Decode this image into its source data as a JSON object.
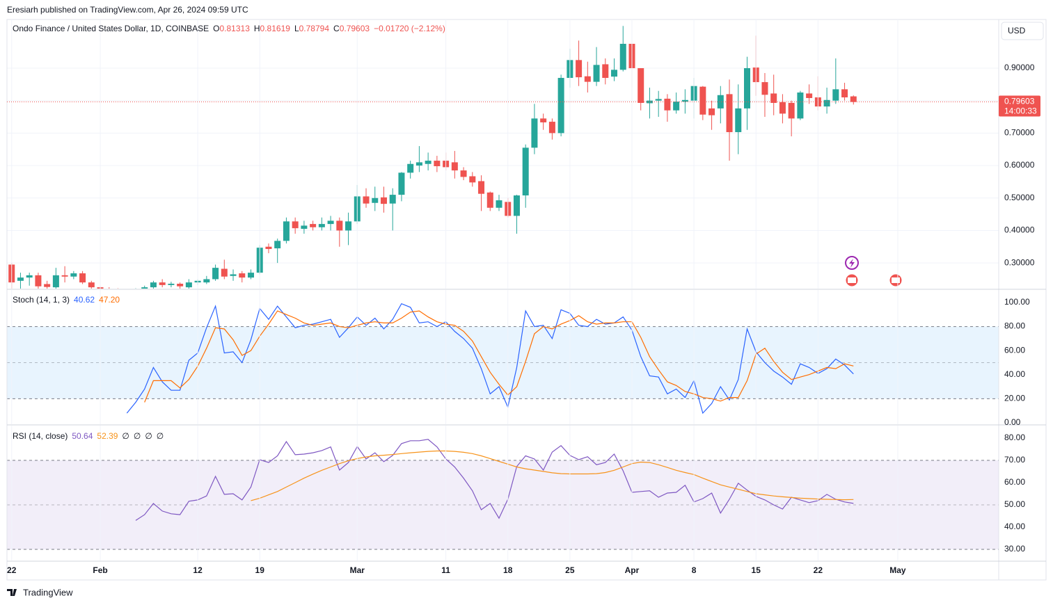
{
  "header": "Eresiarh published on TradingView.com, Apr 26, 2024 09:59 UTC",
  "footer": "TradingView",
  "chart_data": [
    {
      "type": "candlestick",
      "title": "Ondo Finance / United States Dollar, 1D, COINBASE",
      "ohlc_legend": [
        {
          "label": "O",
          "value": "0.81313"
        },
        {
          "label": "H",
          "value": "0.81619"
        },
        {
          "label": "L",
          "value": "0.78794"
        },
        {
          "label": "C",
          "value": "0.79603"
        }
      ],
      "change": "−0.01720 (−2.12%)",
      "currency": "USD",
      "last_price_label": "0.79603",
      "countdown": "14:00:33",
      "up_color": "#26a69a",
      "down_color": "#ef5350",
      "x": [
        "2024-01-22",
        "2024-01-23",
        "2024-01-24",
        "2024-01-25",
        "2024-01-26",
        "2024-01-27",
        "2024-01-28",
        "2024-01-29",
        "2024-01-30",
        "2024-01-31",
        "2024-02-01",
        "2024-02-02",
        "2024-02-03",
        "2024-02-04",
        "2024-02-05",
        "2024-02-06",
        "2024-02-07",
        "2024-02-08",
        "2024-02-09",
        "2024-02-10",
        "2024-02-11",
        "2024-02-12",
        "2024-02-13",
        "2024-02-14",
        "2024-02-15",
        "2024-02-16",
        "2024-02-17",
        "2024-02-18",
        "2024-02-19",
        "2024-02-20",
        "2024-02-21",
        "2024-02-22",
        "2024-02-23",
        "2024-02-24",
        "2024-02-25",
        "2024-02-26",
        "2024-02-27",
        "2024-02-28",
        "2024-02-29",
        "2024-03-01",
        "2024-03-02",
        "2024-03-03",
        "2024-03-04",
        "2024-03-05",
        "2024-03-06",
        "2024-03-07",
        "2024-03-08",
        "2024-03-09",
        "2024-03-10",
        "2024-03-11",
        "2024-03-12",
        "2024-03-13",
        "2024-03-14",
        "2024-03-15",
        "2024-03-16",
        "2024-03-17",
        "2024-03-18",
        "2024-03-19",
        "2024-03-20",
        "2024-03-21",
        "2024-03-22",
        "2024-03-23",
        "2024-03-24",
        "2024-03-25",
        "2024-03-26",
        "2024-03-27",
        "2024-03-28",
        "2024-03-29",
        "2024-03-30",
        "2024-03-31",
        "2024-04-01",
        "2024-04-02",
        "2024-04-03",
        "2024-04-04",
        "2024-04-05",
        "2024-04-06",
        "2024-04-07",
        "2024-04-08",
        "2024-04-09",
        "2024-04-10",
        "2024-04-11",
        "2024-04-12",
        "2024-04-13",
        "2024-04-14",
        "2024-04-15",
        "2024-04-16",
        "2024-04-17",
        "2024-04-18",
        "2024-04-19",
        "2024-04-20",
        "2024-04-21",
        "2024-04-22",
        "2024-04-23",
        "2024-04-24",
        "2024-04-25",
        "2024-04-26"
      ],
      "xlim": [
        "2024-01-21",
        "2024-05-12"
      ],
      "xticks": [
        {
          "value": "2024-01-22",
          "label": "22"
        },
        {
          "value": "2024-02-01",
          "label": "Feb"
        },
        {
          "value": "2024-02-12",
          "label": "12"
        },
        {
          "value": "2024-02-19",
          "label": "19"
        },
        {
          "value": "2024-03-01",
          "label": "Mar"
        },
        {
          "value": "2024-03-11",
          "label": "11"
        },
        {
          "value": "2024-03-18",
          "label": "18"
        },
        {
          "value": "2024-03-25",
          "label": "25"
        },
        {
          "value": "2024-04-01",
          "label": "Apr"
        },
        {
          "value": "2024-04-08",
          "label": "8"
        },
        {
          "value": "2024-04-15",
          "label": "15"
        },
        {
          "value": "2024-04-22",
          "label": "22"
        },
        {
          "value": "2024-05-01",
          "label": "May"
        }
      ],
      "open": [
        0.295,
        0.245,
        0.255,
        0.262,
        0.235,
        0.225,
        0.262,
        0.258,
        0.268,
        0.24,
        0.225,
        0.218,
        0.215,
        0.212,
        0.214,
        0.218,
        0.225,
        0.24,
        0.232,
        0.236,
        0.225,
        0.24,
        0.24,
        0.25,
        0.282,
        0.26,
        0.268,
        0.255,
        0.27,
        0.35,
        0.345,
        0.368,
        0.428,
        0.405,
        0.42,
        0.41,
        0.42,
        0.43,
        0.4,
        0.428,
        0.505,
        0.485,
        0.502,
        0.483,
        0.51,
        0.578,
        0.6,
        0.605,
        0.615,
        0.615,
        0.61,
        0.585,
        0.567,
        0.552,
        0.517,
        0.47,
        0.488,
        0.445,
        0.508,
        0.655,
        0.745,
        0.735,
        0.7,
        0.87,
        0.925,
        0.875,
        0.858,
        0.912,
        0.874,
        0.895,
        0.975,
        0.9,
        0.792,
        0.8,
        0.806,
        0.77,
        0.797,
        0.8,
        0.843,
        0.776,
        0.776,
        0.82,
        0.703,
        0.776,
        0.902,
        0.857,
        0.822,
        0.795,
        0.793,
        0.745,
        0.822,
        0.81,
        0.782,
        0.8,
        0.835,
        0.81313
      ],
      "high": [
        0.3,
        0.27,
        0.27,
        0.27,
        0.245,
        0.285,
        0.29,
        0.275,
        0.275,
        0.245,
        0.23,
        0.225,
        0.222,
        0.22,
        0.222,
        0.23,
        0.245,
        0.25,
        0.242,
        0.24,
        0.25,
        0.25,
        0.26,
        0.295,
        0.31,
        0.28,
        0.275,
        0.28,
        0.355,
        0.36,
        0.375,
        0.44,
        0.44,
        0.43,
        0.43,
        0.44,
        0.445,
        0.44,
        0.455,
        0.54,
        0.53,
        0.535,
        0.535,
        0.53,
        0.58,
        0.615,
        0.66,
        0.64,
        0.63,
        0.64,
        0.645,
        0.595,
        0.58,
        0.57,
        0.52,
        0.51,
        0.5,
        0.51,
        0.665,
        0.79,
        0.76,
        0.745,
        0.88,
        0.96,
        0.985,
        0.92,
        0.965,
        0.93,
        0.93,
        1.03,
        0.98,
        0.9,
        0.84,
        0.83,
        0.82,
        0.825,
        0.835,
        0.87,
        0.845,
        0.8,
        0.845,
        0.865,
        0.85,
        0.935,
        1.0,
        0.885,
        0.88,
        0.82,
        0.8,
        0.83,
        0.85,
        0.875,
        0.84,
        0.93,
        0.855,
        0.81619
      ],
      "low": [
        0.22,
        0.22,
        0.23,
        0.22,
        0.215,
        0.22,
        0.24,
        0.25,
        0.235,
        0.215,
        0.21,
        0.205,
        0.205,
        0.205,
        0.208,
        0.21,
        0.22,
        0.225,
        0.225,
        0.22,
        0.22,
        0.232,
        0.235,
        0.245,
        0.25,
        0.245,
        0.24,
        0.25,
        0.265,
        0.33,
        0.3,
        0.36,
        0.39,
        0.39,
        0.4,
        0.4,
        0.4,
        0.35,
        0.355,
        0.42,
        0.47,
        0.46,
        0.455,
        0.4,
        0.49,
        0.56,
        0.58,
        0.585,
        0.58,
        0.585,
        0.56,
        0.555,
        0.535,
        0.46,
        0.46,
        0.46,
        0.44,
        0.39,
        0.47,
        0.635,
        0.71,
        0.68,
        0.69,
        0.84,
        0.845,
        0.825,
        0.845,
        0.85,
        0.86,
        0.89,
        0.84,
        0.77,
        0.745,
        0.75,
        0.735,
        0.76,
        0.76,
        0.745,
        0.74,
        0.71,
        0.73,
        0.615,
        0.635,
        0.71,
        0.815,
        0.75,
        0.755,
        0.73,
        0.69,
        0.74,
        0.79,
        0.77,
        0.76,
        0.79,
        0.8,
        0.78794
      ],
      "close": [
        0.24,
        0.255,
        0.262,
        0.228,
        0.226,
        0.262,
        0.258,
        0.268,
        0.24,
        0.225,
        0.218,
        0.215,
        0.212,
        0.214,
        0.218,
        0.225,
        0.24,
        0.232,
        0.236,
        0.228,
        0.24,
        0.245,
        0.25,
        0.285,
        0.258,
        0.265,
        0.255,
        0.27,
        0.347,
        0.343,
        0.368,
        0.428,
        0.407,
        0.415,
        0.41,
        0.42,
        0.43,
        0.4,
        0.428,
        0.505,
        0.483,
        0.5,
        0.482,
        0.51,
        0.578,
        0.605,
        0.61,
        0.615,
        0.598,
        0.595,
        0.585,
        0.565,
        0.548,
        0.513,
        0.47,
        0.493,
        0.445,
        0.508,
        0.655,
        0.745,
        0.733,
        0.7,
        0.87,
        0.925,
        0.872,
        0.858,
        0.91,
        0.87,
        0.895,
        0.975,
        0.9,
        0.793,
        0.8,
        0.805,
        0.77,
        0.797,
        0.802,
        0.845,
        0.757,
        0.755,
        0.817,
        0.703,
        0.776,
        0.9,
        0.857,
        0.818,
        0.793,
        0.76,
        0.745,
        0.825,
        0.808,
        0.782,
        0.802,
        0.835,
        0.81,
        0.79603
      ],
      "ylim": [
        0.221,
        1.05
      ],
      "yticks": [
        {
          "value": 0.9,
          "label": "0.90000"
        },
        {
          "value": 0.8,
          "label": "0.80000"
        },
        {
          "value": 0.7,
          "label": "0.70000"
        },
        {
          "value": 0.6,
          "label": "0.60000"
        },
        {
          "value": 0.5,
          "label": "0.50000"
        },
        {
          "value": 0.4,
          "label": "0.40000"
        },
        {
          "value": 0.3,
          "label": "0.30000"
        }
      ],
      "grid": true
    },
    {
      "type": "line",
      "title": "Stoch (14, 1, 3)",
      "ylim": [
        -1.2,
        110.4
      ],
      "yticks": [
        {
          "value": 100,
          "label": "100.00"
        },
        {
          "value": 80,
          "label": "80.00"
        },
        {
          "value": 60,
          "label": "60.00"
        },
        {
          "value": 40,
          "label": "40.00"
        },
        {
          "value": 20,
          "label": "20.00"
        },
        {
          "value": 0,
          "label": "0.00"
        }
      ],
      "band": [
        20,
        80
      ],
      "midline": 50,
      "band_color": "rgba(33,150,243,0.1)",
      "series": [
        {
          "color": "#2962ff",
          "last_value_label": "40.62",
          "values": [
            null,
            null,
            null,
            null,
            null,
            null,
            null,
            null,
            null,
            null,
            null,
            null,
            null,
            8,
            17,
            28,
            46,
            34,
            27,
            27,
            52,
            58,
            79,
            97,
            58,
            59,
            50,
            69,
            95,
            86,
            97,
            88,
            79,
            81,
            82,
            84,
            86,
            71,
            79,
            88,
            81,
            87,
            78,
            86,
            99,
            96,
            83,
            84,
            80,
            84,
            76,
            70,
            62,
            45,
            24,
            30,
            13,
            46,
            93,
            80,
            81,
            70,
            94,
            91,
            81,
            80,
            86,
            82,
            83,
            88,
            77,
            55,
            39,
            38,
            24,
            28,
            21,
            35,
            8,
            16,
            30,
            19,
            36,
            78,
            59,
            50,
            43,
            38,
            32,
            49,
            46,
            41,
            45,
            53,
            48,
            40.62
          ]
        },
        {
          "color": "#ff6d00",
          "last_value_label": "47.20",
          "values": [
            null,
            null,
            null,
            null,
            null,
            null,
            null,
            null,
            null,
            null,
            null,
            null,
            null,
            null,
            null,
            17,
            35,
            35,
            35,
            29,
            36,
            47,
            62,
            79,
            78,
            69,
            56,
            60,
            72,
            82,
            93,
            90,
            87,
            83,
            81,
            82,
            83,
            80,
            79,
            81,
            83,
            84,
            83,
            83,
            87,
            92,
            93,
            88,
            84,
            82,
            81,
            76,
            68,
            55,
            42,
            32,
            23,
            30,
            51,
            74,
            80,
            78,
            82,
            85,
            89,
            84,
            82,
            83,
            83,
            84,
            84,
            71,
            55,
            44,
            34,
            31,
            26,
            24,
            21,
            20,
            18,
            21,
            21,
            35,
            57,
            62,
            51,
            42,
            36,
            38,
            40,
            43,
            46,
            45,
            49,
            47.2
          ]
        }
      ]
    },
    {
      "type": "line",
      "title": "RSI (14, close)",
      "ylim": [
        25,
        85.6
      ],
      "na_marks": [
        "∅",
        "∅",
        "∅",
        "∅"
      ],
      "yticks": [
        {
          "value": 80,
          "label": "80.00"
        },
        {
          "value": 70,
          "label": "70.00"
        },
        {
          "value": 60,
          "label": "60.00"
        },
        {
          "value": 50,
          "label": "50.00"
        },
        {
          "value": 40,
          "label": "40.00"
        },
        {
          "value": 30,
          "label": "30.00"
        }
      ],
      "band": [
        30,
        70
      ],
      "midline": 50,
      "band_color": "rgba(126,87,194,0.1)",
      "series": [
        {
          "color": "#7e57c2",
          "last_value_label": "50.64",
          "values": [
            null,
            null,
            null,
            null,
            null,
            null,
            null,
            null,
            null,
            null,
            null,
            null,
            null,
            null,
            43,
            45.6,
            50.6,
            47.2,
            46,
            45.6,
            51.6,
            52.2,
            54,
            62.8,
            54.7,
            55,
            52.2,
            58,
            70.3,
            69,
            72,
            78.4,
            72.5,
            72.8,
            73.4,
            74.4,
            76,
            65.6,
            69,
            76.2,
            70.6,
            73.4,
            69.4,
            72.2,
            77.5,
            78.8,
            78.8,
            79.4,
            76,
            70.6,
            67,
            62,
            56.3,
            47.8,
            50.6,
            44,
            52.5,
            67.2,
            72,
            70.6,
            65.6,
            73.7,
            76.6,
            72.2,
            70.3,
            71.6,
            68,
            69,
            72.8,
            65.3,
            55.6,
            56,
            56.3,
            53.4,
            55.3,
            55.6,
            58.8,
            51.3,
            52.8,
            55.3,
            46.3,
            52.5,
            59.7,
            56.6,
            53.8,
            52.2,
            50,
            48.1,
            53.4,
            52.2,
            51,
            51.9,
            54.7,
            52.5,
            51.3,
            50.64
          ]
        },
        {
          "color": "#f7931a",
          "last_value_label": "52.39",
          "values": [
            null,
            null,
            null,
            null,
            null,
            null,
            null,
            null,
            null,
            null,
            null,
            null,
            null,
            null,
            null,
            null,
            null,
            null,
            null,
            null,
            null,
            null,
            null,
            null,
            null,
            null,
            null,
            51.9,
            53,
            54.5,
            56,
            58,
            60,
            62,
            63.8,
            65.5,
            67,
            68.5,
            69.8,
            70.8,
            71.5,
            72,
            72.3,
            72.6,
            73,
            73.4,
            73.7,
            74,
            74.2,
            74.2,
            74,
            73.6,
            73,
            72,
            70.8,
            69.5,
            68.3,
            67,
            66.2,
            65.6,
            65,
            64.4,
            64,
            63.9,
            63.9,
            63.9,
            64,
            64.5,
            65.5,
            67,
            68.5,
            69.2,
            69,
            68,
            66.8,
            65.5,
            64.5,
            63.6,
            62,
            60.5,
            59,
            58,
            57,
            56,
            55,
            54.5,
            54,
            53.6,
            53.3,
            53,
            52.8,
            52.6,
            52.5,
            52.4,
            52.3,
            52.39
          ]
        }
      ]
    }
  ]
}
